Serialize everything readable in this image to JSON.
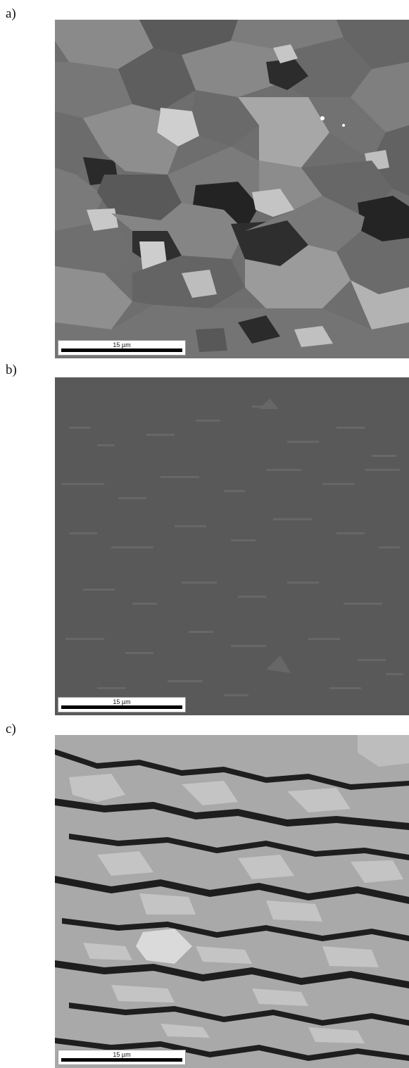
{
  "figure": {
    "panels": [
      {
        "id": "a",
        "label": "a)",
        "scale_text": "15 µm",
        "description_icon": "grain-orientation-map"
      },
      {
        "id": "b",
        "label": "b)",
        "scale_text": "15 µm",
        "description_icon": "phase-map"
      },
      {
        "id": "c",
        "label": "c)",
        "scale_text": "15 µm",
        "description_icon": "band-contrast-map"
      }
    ]
  },
  "colors": {
    "background": "#ffffff",
    "panel_b_base": "#595959",
    "panel_c_base": "#a9a9a9",
    "scalebar": "#000000"
  }
}
